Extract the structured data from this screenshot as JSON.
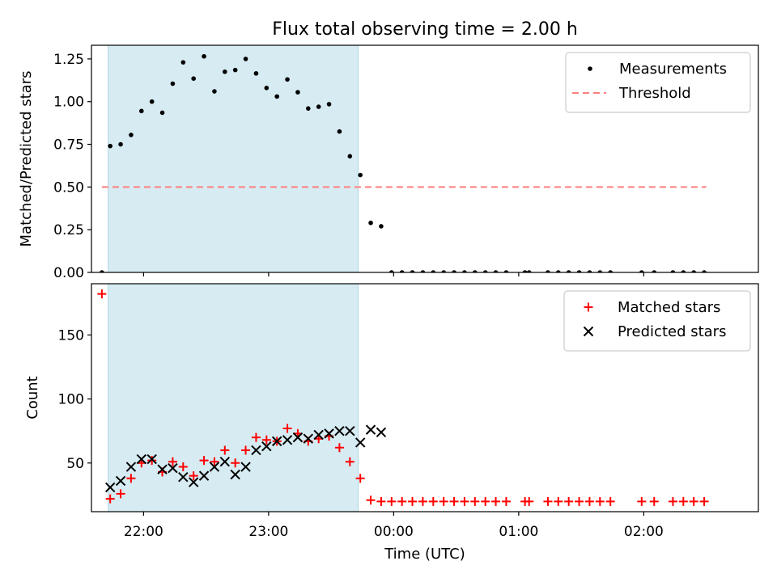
{
  "figure": {
    "title": "Flux total observing time = 2.00 h",
    "xlabel": "Time (UTC)"
  },
  "colors": {
    "shade": "#add8e6",
    "threshold": "#ff7f7f",
    "measurements": "#000000",
    "matched": "#ff0000",
    "predicted": "#000000"
  },
  "chart_data": [
    {
      "type": "scatter",
      "panel": "top",
      "ylabel": "Matched/Predicted stars",
      "xlim": [
        "21:35",
        "02:55"
      ],
      "ylim": [
        0,
        1.33
      ],
      "yticks": [
        0.0,
        0.25,
        0.5,
        0.75,
        1.0,
        1.25
      ],
      "yticklabels": [
        "0.00",
        "0.25",
        "0.50",
        "0.75",
        "1.00",
        "1.25"
      ],
      "xticks": [
        "22:00",
        "23:00",
        "00:00",
        "01:00",
        "02:00"
      ],
      "grid": false,
      "legend": "top-right",
      "shaded_span": [
        "21:43",
        "23:43"
      ],
      "threshold": {
        "name": "Threshold",
        "value": 0.5,
        "x_range": [
          "21:40",
          "02:30"
        ]
      },
      "series": [
        {
          "name": "Measurements",
          "marker": "dot",
          "points": [
            [
              "21:40",
              0.0
            ],
            [
              "21:44",
              0.74
            ],
            [
              "21:49",
              0.75
            ],
            [
              "21:54",
              0.805
            ],
            [
              "21:59",
              0.945
            ],
            [
              "22:04",
              1.0
            ],
            [
              "22:09",
              0.935
            ],
            [
              "22:14",
              1.105
            ],
            [
              "22:19",
              1.23
            ],
            [
              "22:24",
              1.135
            ],
            [
              "22:29",
              1.265
            ],
            [
              "22:34",
              1.06
            ],
            [
              "22:39",
              1.175
            ],
            [
              "22:44",
              1.185
            ],
            [
              "22:49",
              1.25
            ],
            [
              "22:54",
              1.165
            ],
            [
              "22:59",
              1.08
            ],
            [
              "23:04",
              1.03
            ],
            [
              "23:09",
              1.13
            ],
            [
              "23:14",
              1.055
            ],
            [
              "23:19",
              0.96
            ],
            [
              "23:24",
              0.97
            ],
            [
              "23:29",
              0.985
            ],
            [
              "23:34",
              0.825
            ],
            [
              "23:39",
              0.68
            ],
            [
              "23:44",
              0.57
            ],
            [
              "23:49",
              0.29
            ],
            [
              "23:54",
              0.27
            ],
            [
              "23:59",
              0.0
            ],
            [
              "00:04",
              0.0
            ],
            [
              "00:09",
              0.0
            ],
            [
              "00:14",
              0.0
            ],
            [
              "00:19",
              0.0
            ],
            [
              "00:24",
              0.0
            ],
            [
              "00:29",
              0.0
            ],
            [
              "00:34",
              0.0
            ],
            [
              "00:39",
              0.0
            ],
            [
              "00:44",
              0.0
            ],
            [
              "00:49",
              0.0
            ],
            [
              "00:54",
              0.0
            ],
            [
              "01:03",
              0.0
            ],
            [
              "01:05",
              0.0
            ],
            [
              "01:14",
              0.0
            ],
            [
              "01:19",
              0.0
            ],
            [
              "01:24",
              0.0
            ],
            [
              "01:29",
              0.0
            ],
            [
              "01:34",
              0.0
            ],
            [
              "01:39",
              0.0
            ],
            [
              "01:44",
              0.0
            ],
            [
              "01:59",
              0.0
            ],
            [
              "02:05",
              0.0
            ],
            [
              "02:14",
              0.0
            ],
            [
              "02:19",
              0.0
            ],
            [
              "02:24",
              0.0
            ],
            [
              "02:29",
              0.0
            ]
          ]
        }
      ]
    },
    {
      "type": "scatter",
      "panel": "bottom",
      "ylabel": "Count",
      "xlim": [
        "21:35",
        "02:55"
      ],
      "ylim": [
        12,
        190
      ],
      "yticks": [
        50,
        100,
        150
      ],
      "yticklabels": [
        "50",
        "100",
        "150"
      ],
      "xticks": [
        "22:00",
        "23:00",
        "00:00",
        "01:00",
        "02:00"
      ],
      "grid": false,
      "legend": "top-right",
      "shaded_span": [
        "21:43",
        "23:43"
      ],
      "series": [
        {
          "name": "Matched stars",
          "marker": "plus",
          "points": [
            [
              "21:40",
              182
            ],
            [
              "21:44",
              22
            ],
            [
              "21:49",
              26
            ],
            [
              "21:54",
              38
            ],
            [
              "21:59",
              50
            ],
            [
              "22:04",
              52
            ],
            [
              "22:09",
              43
            ],
            [
              "22:14",
              51
            ],
            [
              "22:19",
              47
            ],
            [
              "22:24",
              40
            ],
            [
              "22:29",
              52
            ],
            [
              "22:34",
              51
            ],
            [
              "22:39",
              60
            ],
            [
              "22:44",
              50
            ],
            [
              "22:49",
              60
            ],
            [
              "22:54",
              70
            ],
            [
              "22:59",
              68
            ],
            [
              "23:04",
              67
            ],
            [
              "23:09",
              77
            ],
            [
              "23:14",
              73
            ],
            [
              "23:19",
              67
            ],
            [
              "23:24",
              69
            ],
            [
              "23:29",
              71
            ],
            [
              "23:34",
              62
            ],
            [
              "23:39",
              51
            ],
            [
              "23:44",
              38
            ],
            [
              "23:49",
              21
            ],
            [
              "23:54",
              20
            ],
            [
              "23:59",
              20
            ],
            [
              "00:04",
              20
            ],
            [
              "00:09",
              20
            ],
            [
              "00:14",
              20
            ],
            [
              "00:19",
              20
            ],
            [
              "00:24",
              20
            ],
            [
              "00:29",
              20
            ],
            [
              "00:34",
              20
            ],
            [
              "00:39",
              20
            ],
            [
              "00:44",
              20
            ],
            [
              "00:49",
              20
            ],
            [
              "00:54",
              20
            ],
            [
              "01:03",
              20
            ],
            [
              "01:05",
              20
            ],
            [
              "01:14",
              20
            ],
            [
              "01:19",
              20
            ],
            [
              "01:24",
              20
            ],
            [
              "01:29",
              20
            ],
            [
              "01:34",
              20
            ],
            [
              "01:39",
              20
            ],
            [
              "01:44",
              20
            ],
            [
              "01:59",
              20
            ],
            [
              "02:05",
              20
            ],
            [
              "02:14",
              20
            ],
            [
              "02:19",
              20
            ],
            [
              "02:24",
              20
            ],
            [
              "02:29",
              20
            ]
          ]
        },
        {
          "name": "Predicted stars",
          "marker": "x",
          "points": [
            [
              "21:44",
              31
            ],
            [
              "21:49",
              36
            ],
            [
              "21:54",
              47
            ],
            [
              "21:59",
              53
            ],
            [
              "22:04",
              53
            ],
            [
              "22:09",
              45
            ],
            [
              "22:14",
              46
            ],
            [
              "22:19",
              39
            ],
            [
              "22:24",
              35
            ],
            [
              "22:29",
              40
            ],
            [
              "22:34",
              47
            ],
            [
              "22:39",
              51
            ],
            [
              "22:44",
              41
            ],
            [
              "22:49",
              47
            ],
            [
              "22:54",
              60
            ],
            [
              "22:59",
              63
            ],
            [
              "23:04",
              67
            ],
            [
              "23:09",
              68
            ],
            [
              "23:14",
              70
            ],
            [
              "23:19",
              69
            ],
            [
              "23:24",
              72
            ],
            [
              "23:29",
              73
            ],
            [
              "23:34",
              75
            ],
            [
              "23:39",
              75
            ],
            [
              "23:44",
              66
            ],
            [
              "23:49",
              76
            ],
            [
              "23:54",
              74
            ]
          ]
        }
      ]
    }
  ]
}
